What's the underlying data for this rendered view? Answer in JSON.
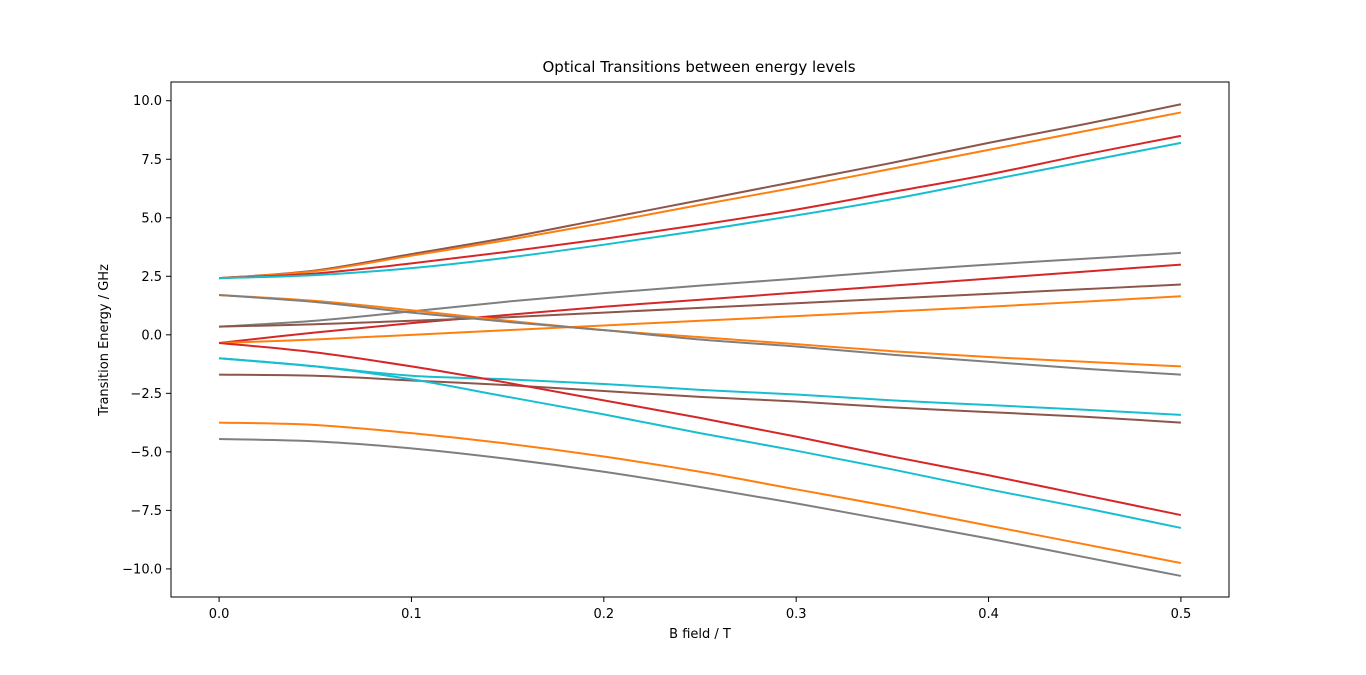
{
  "chart_data": {
    "type": "line",
    "title": "Optical Transitions between energy levels",
    "xlabel": "B field / T",
    "ylabel": "Transition Energy / GHz",
    "xlim": [
      -0.025,
      0.525
    ],
    "ylim": [
      -11.2,
      10.8
    ],
    "grid": false,
    "legend": "none",
    "x_ticks": [
      0.0,
      0.1,
      0.2,
      0.3,
      0.4,
      0.5
    ],
    "x_tick_labels": [
      "0.0",
      "0.1",
      "0.2",
      "0.3",
      "0.4",
      "0.5"
    ],
    "y_ticks": [
      10.0,
      7.5,
      5.0,
      2.5,
      0.0,
      -2.5,
      -5.0,
      -7.5,
      -10.0
    ],
    "y_tick_labels": [
      "10.0",
      "7.5",
      "5.0",
      "2.5",
      "0.0",
      "−2.5",
      "−5.0",
      "−7.5",
      "−10.0"
    ],
    "x": [
      0.0,
      0.05,
      0.1,
      0.15,
      0.2,
      0.25,
      0.3,
      0.35,
      0.4,
      0.45,
      0.5
    ],
    "series": [
      {
        "color": "#8c564b",
        "values": [
          2.42,
          2.75,
          3.45,
          4.15,
          4.95,
          5.75,
          6.55,
          7.35,
          8.2,
          9.0,
          9.85
        ]
      },
      {
        "color": "#ff7f0e",
        "values": [
          2.42,
          2.72,
          3.38,
          4.05,
          4.78,
          5.55,
          6.3,
          7.1,
          7.9,
          8.7,
          9.5
        ]
      },
      {
        "color": "#d62728",
        "values": [
          2.42,
          2.62,
          3.05,
          3.55,
          4.1,
          4.7,
          5.35,
          6.1,
          6.85,
          7.7,
          8.5
        ]
      },
      {
        "color": "#17becf",
        "values": [
          2.42,
          2.55,
          2.85,
          3.3,
          3.85,
          4.45,
          5.1,
          5.8,
          6.6,
          7.4,
          8.2
        ]
      },
      {
        "color": "#7f7f7f",
        "values": [
          0.35,
          0.6,
          1.0,
          1.42,
          1.78,
          2.1,
          2.4,
          2.72,
          3.0,
          3.25,
          3.5
        ]
      },
      {
        "color": "#d62728",
        "values": [
          -0.35,
          0.1,
          0.5,
          0.85,
          1.2,
          1.5,
          1.8,
          2.1,
          2.4,
          2.7,
          3.0
        ]
      },
      {
        "color": "#8c564b",
        "values": [
          0.35,
          0.45,
          0.6,
          0.75,
          0.95,
          1.15,
          1.35,
          1.55,
          1.75,
          1.95,
          2.15
        ]
      },
      {
        "color": "#ff7f0e",
        "values": [
          -0.35,
          -0.2,
          0.0,
          0.2,
          0.4,
          0.6,
          0.8,
          1.0,
          1.2,
          1.42,
          1.65
        ]
      },
      {
        "color": "#ff7f0e",
        "values": [
          1.7,
          1.45,
          1.05,
          0.6,
          0.2,
          -0.1,
          -0.4,
          -0.7,
          -0.95,
          -1.15,
          -1.35
        ]
      },
      {
        "color": "#7f7f7f",
        "values": [
          1.7,
          1.4,
          0.95,
          0.55,
          0.2,
          -0.2,
          -0.5,
          -0.85,
          -1.15,
          -1.45,
          -1.7
        ]
      },
      {
        "color": "#17becf",
        "values": [
          -1.0,
          -1.35,
          -1.75,
          -1.9,
          -2.1,
          -2.35,
          -2.55,
          -2.8,
          -3.0,
          -3.2,
          -3.42
        ]
      },
      {
        "color": "#8c564b",
        "values": [
          -1.7,
          -1.75,
          -1.95,
          -2.15,
          -2.4,
          -2.65,
          -2.85,
          -3.1,
          -3.3,
          -3.5,
          -3.75
        ]
      },
      {
        "color": "#d62728",
        "values": [
          -0.35,
          -0.75,
          -1.35,
          -2.05,
          -2.8,
          -3.55,
          -4.35,
          -5.2,
          -6.0,
          -6.85,
          -7.7
        ]
      },
      {
        "color": "#17becf",
        "values": [
          -1.0,
          -1.35,
          -1.9,
          -2.65,
          -3.4,
          -4.2,
          -4.95,
          -5.75,
          -6.6,
          -7.4,
          -8.25
        ]
      },
      {
        "color": "#ff7f0e",
        "values": [
          -3.75,
          -3.85,
          -4.2,
          -4.65,
          -5.2,
          -5.85,
          -6.6,
          -7.35,
          -8.15,
          -8.95,
          -9.75
        ]
      },
      {
        "color": "#7f7f7f",
        "values": [
          -4.45,
          -4.55,
          -4.85,
          -5.3,
          -5.85,
          -6.5,
          -7.2,
          -7.95,
          -8.7,
          -9.5,
          -10.3
        ]
      }
    ]
  }
}
